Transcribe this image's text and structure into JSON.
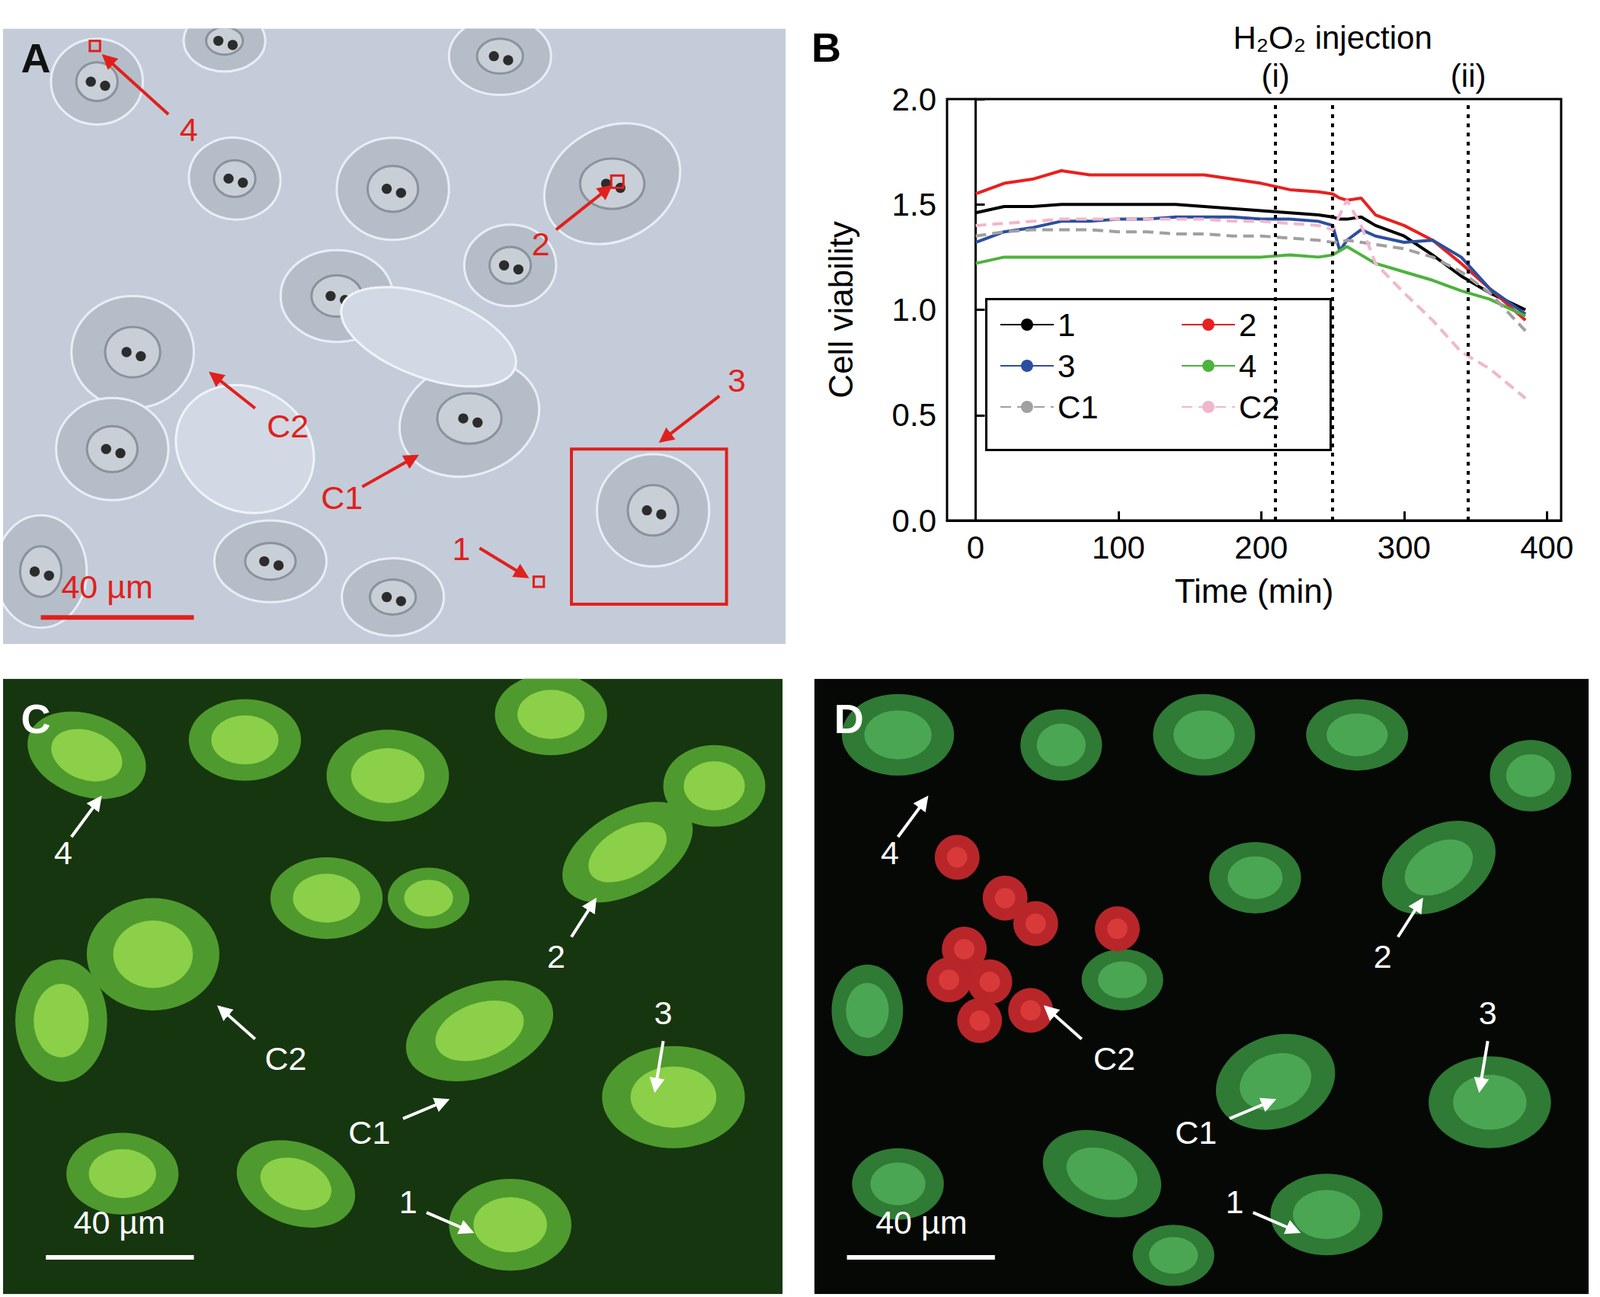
{
  "chart_data": {
    "type": "line",
    "panel_label": "B",
    "xlabel": "Time (min)",
    "ylabel": "Cell viability",
    "x": [
      0,
      20,
      40,
      60,
      80,
      100,
      120,
      140,
      160,
      180,
      200,
      220,
      240,
      250,
      255,
      260,
      270,
      280,
      300,
      320,
      340,
      360,
      385
    ],
    "xlim": [
      -20,
      410
    ],
    "xticks": [
      0,
      100,
      200,
      300,
      400
    ],
    "ylim": [
      0,
      2.0
    ],
    "yticks": [
      {
        "value": 0,
        "label": "0.0"
      },
      {
        "value": 0.5,
        "label": "0.5"
      },
      {
        "value": 1.0,
        "label": "1.0"
      },
      {
        "value": 1.5,
        "label": "1.5"
      },
      {
        "value": 2.0,
        "label": "2.0"
      }
    ],
    "grid": false,
    "legend": "lower left",
    "annotations": [
      {
        "text": "(i)",
        "x": 210
      },
      {
        "text": "H₂O₂ injection",
        "x": 250
      },
      {
        "text": "(ii)",
        "x": 345
      }
    ],
    "series": [
      {
        "name": "1",
        "color": "#000000",
        "line_style": "solid",
        "values": [
          1.46,
          1.49,
          1.49,
          1.5,
          1.5,
          1.5,
          1.5,
          1.5,
          1.49,
          1.48,
          1.47,
          1.46,
          1.45,
          1.44,
          1.43,
          1.43,
          1.44,
          1.4,
          1.35,
          1.26,
          1.16,
          1.08,
          1.0
        ]
      },
      {
        "name": "2",
        "color": "#e8201f",
        "line_style": "solid",
        "values": [
          1.55,
          1.6,
          1.62,
          1.66,
          1.64,
          1.64,
          1.64,
          1.64,
          1.64,
          1.62,
          1.6,
          1.57,
          1.56,
          1.55,
          1.53,
          1.52,
          1.53,
          1.45,
          1.4,
          1.33,
          1.22,
          1.1,
          0.95
        ]
      },
      {
        "name": "3",
        "color": "#2b4fa0",
        "line_style": "solid",
        "values": [
          1.32,
          1.37,
          1.39,
          1.42,
          1.42,
          1.43,
          1.43,
          1.44,
          1.44,
          1.44,
          1.43,
          1.43,
          1.42,
          1.4,
          1.28,
          1.33,
          1.38,
          1.35,
          1.32,
          1.33,
          1.25,
          1.1,
          0.98
        ]
      },
      {
        "name": "4",
        "color": "#4cb33c",
        "line_style": "solid",
        "values": [
          1.22,
          1.25,
          1.25,
          1.25,
          1.25,
          1.25,
          1.25,
          1.25,
          1.25,
          1.25,
          1.25,
          1.26,
          1.25,
          1.26,
          1.28,
          1.3,
          1.26,
          1.22,
          1.18,
          1.14,
          1.09,
          1.05,
          0.97
        ]
      },
      {
        "name": "C1",
        "color": "#a0a0a0",
        "line_style": "dashed",
        "values": [
          1.35,
          1.37,
          1.38,
          1.38,
          1.38,
          1.37,
          1.37,
          1.36,
          1.36,
          1.35,
          1.35,
          1.34,
          1.33,
          1.32,
          1.32,
          1.33,
          1.32,
          1.31,
          1.29,
          1.25,
          1.18,
          1.08,
          0.9
        ]
      },
      {
        "name": "C2",
        "color": "#f2b6cc",
        "line_style": "dashed",
        "values": [
          1.4,
          1.41,
          1.42,
          1.43,
          1.43,
          1.43,
          1.43,
          1.43,
          1.43,
          1.42,
          1.42,
          1.41,
          1.4,
          1.38,
          1.45,
          1.52,
          1.4,
          1.22,
          1.08,
          0.95,
          0.8,
          0.72,
          0.58
        ]
      }
    ]
  },
  "images": [
    {
      "panel": "A",
      "labels": [
        "4",
        "2",
        "C2",
        "C1",
        "3",
        "1"
      ],
      "scale_bar": "40 µm"
    },
    {
      "panel": "C",
      "labels": [
        "4",
        "C2",
        "2",
        "3",
        "C1",
        "1"
      ],
      "scale_bar": "40 µm"
    },
    {
      "panel": "D",
      "labels": [
        "4",
        "C2",
        "2",
        "3",
        "C1",
        "1"
      ],
      "scale_bar": "40 µm"
    }
  ]
}
